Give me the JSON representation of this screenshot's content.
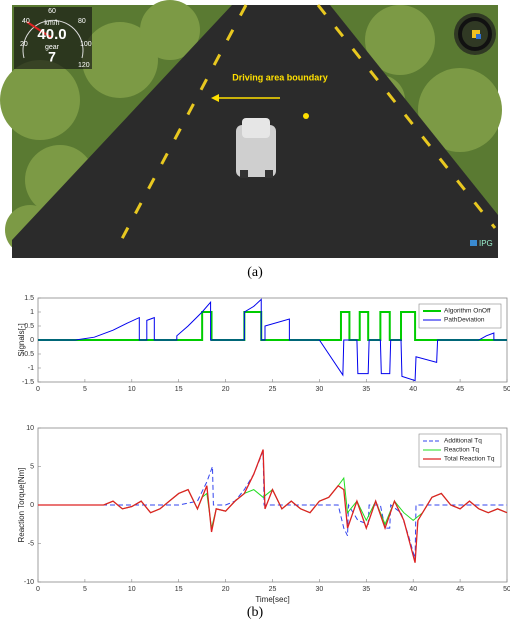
{
  "scene": {
    "gauge_ticks": [
      "20",
      "40",
      "60",
      "80",
      "100",
      "120"
    ],
    "speed_unit": "km/h",
    "speed": "40.0",
    "gear_label": "gear",
    "gear": "7",
    "annotation": "Driving area boundary",
    "logo": "IPG"
  },
  "captions": [
    "(a)",
    "(b)"
  ],
  "chart_data": [
    {
      "type": "line",
      "ylabel": "Signals[-]",
      "xlim": [
        0,
        50
      ],
      "xticks": [
        0,
        5,
        10,
        15,
        20,
        25,
        30,
        35,
        40,
        45,
        50
      ],
      "ylim": [
        -1.5,
        1.5
      ],
      "yticks": [
        -1.5,
        -1,
        -0.5,
        0,
        0.5,
        1,
        1.5
      ],
      "legend": "upper right",
      "series": [
        {
          "name": "Algorithm OnOff",
          "color": "#00cc00",
          "width": 2,
          "dashed": false,
          "x": [
            0,
            17.5,
            17.5,
            18.5,
            18.5,
            22,
            22,
            23.8,
            23.8,
            32.3,
            32.3,
            33.2,
            33.2,
            34.3,
            34.3,
            35.2,
            35.2,
            36.5,
            36.5,
            37.5,
            37.5,
            38.7,
            38.7,
            40.2,
            40.2,
            50
          ],
          "values": [
            0,
            0,
            1,
            1,
            0,
            0,
            1,
            1,
            0,
            0,
            1,
            1,
            0,
            0,
            1,
            1,
            0,
            0,
            1,
            1,
            0,
            0,
            1,
            1,
            0,
            0
          ]
        },
        {
          "name": "PathDeviation",
          "color": "#0000ee",
          "width": 1,
          "dashed": false,
          "x": [
            0,
            4,
            6,
            8,
            9.5,
            10.8,
            10.8,
            11.6,
            11.6,
            12.4,
            12.4,
            14.8,
            14.8,
            16,
            17.5,
            18.4,
            18.4,
            22,
            22,
            23,
            23.8,
            23.8,
            24.2,
            24.2,
            26.8,
            26.8,
            30,
            31,
            32.5,
            32.6,
            34,
            34.1,
            35.2,
            35.3,
            36.5,
            36.6,
            37.5,
            37.6,
            38.7,
            38.8,
            40.2,
            40.3,
            42.5,
            42.6,
            47,
            47.8,
            48.6,
            48.6,
            50
          ],
          "values": [
            0,
            0,
            0.1,
            0.35,
            0.6,
            0.8,
            0,
            0,
            0.7,
            0.8,
            0,
            0,
            0.15,
            0.5,
            1.0,
            1.35,
            0,
            0,
            1.0,
            1.2,
            1.45,
            0,
            0,
            0.5,
            0.75,
            0,
            0,
            -0.5,
            -1.25,
            0,
            0,
            -1.2,
            -1.2,
            0,
            0,
            -1.2,
            -1.2,
            0,
            0,
            -1.3,
            -1.45,
            -0.6,
            -0.8,
            0,
            0,
            0.15,
            0.25,
            0,
            0
          ]
        }
      ]
    },
    {
      "type": "line",
      "xlabel": "Time[sec]",
      "ylabel": "Reaction Torque[Nm]",
      "xlim": [
        0,
        50
      ],
      "xticks": [
        0,
        5,
        10,
        15,
        20,
        25,
        30,
        35,
        40,
        45,
        50
      ],
      "ylim": [
        -10,
        10
      ],
      "yticks": [
        -10,
        -5,
        0,
        5,
        10
      ],
      "legend": "upper right",
      "series": [
        {
          "name": "Additional Tq",
          "color": "#3344ee",
          "width": 1,
          "dashed": true,
          "x": [
            0,
            15,
            17,
            18,
            18.6,
            18.7,
            20,
            21,
            22,
            23,
            24,
            24.1,
            32,
            32.6,
            33,
            33.1,
            34.1,
            35.2,
            35.3,
            36.5,
            37,
            37.5,
            37.6,
            38.7,
            39.5,
            40.2,
            40.3,
            50
          ],
          "values": [
            0,
            0,
            0.5,
            3,
            5,
            0,
            0,
            0.5,
            2,
            4,
            7,
            0,
            0,
            -3,
            -4,
            0,
            -2,
            -2.5,
            0,
            0,
            -3,
            -3,
            0,
            -1,
            -4,
            -7,
            0,
            0
          ]
        },
        {
          "name": "Reaction Tq",
          "color": "#22dd22",
          "width": 1,
          "dashed": false,
          "x": [
            0,
            7,
            8,
            9,
            10,
            11,
            12,
            13,
            14,
            15,
            16,
            17,
            17.5,
            18,
            18.5,
            19,
            20,
            21,
            22,
            23,
            24,
            25,
            26,
            27,
            28,
            29,
            30,
            31,
            32,
            32.6,
            33,
            34,
            35,
            36,
            37,
            38,
            39,
            40,
            41,
            42,
            43,
            44,
            45,
            46,
            47,
            48,
            49,
            50
          ],
          "values": [
            0,
            0,
            0.5,
            -0.5,
            -0.2,
            0.5,
            -1,
            -0.5,
            0.5,
            1.5,
            2,
            -0.5,
            1,
            1.5,
            -3,
            -0.5,
            -0.8,
            0.5,
            1.5,
            2,
            1,
            2,
            -0.5,
            0.5,
            -0.5,
            -1,
            0.5,
            1,
            2.5,
            3.5,
            -1,
            0.5,
            -2,
            0.5,
            -2.5,
            0.5,
            -1,
            -2,
            -1,
            1,
            1.5,
            0,
            -0.5,
            0.5,
            -0.5,
            -1,
            -0.5,
            -1
          ]
        },
        {
          "name": "Total Reaction Tq",
          "color": "#dd2222",
          "width": 1.3,
          "dashed": false,
          "x": [
            0,
            7,
            8,
            9,
            10,
            11,
            12,
            13,
            14,
            15,
            16,
            17,
            17.5,
            18,
            18.5,
            19,
            20,
            21,
            22,
            23,
            24,
            24.2,
            25,
            26,
            27,
            28,
            29,
            30,
            31,
            32,
            32.6,
            33,
            34,
            35,
            36,
            37,
            38,
            39,
            40.2,
            40.5,
            41,
            42,
            43,
            44,
            45,
            46,
            47,
            48,
            49,
            50
          ],
          "values": [
            0,
            0,
            0.5,
            -0.5,
            -0.2,
            0.5,
            -1,
            -0.5,
            0.5,
            1.5,
            2,
            -0.5,
            1,
            2.5,
            -3.5,
            -0.5,
            -0.8,
            0.5,
            1.5,
            4,
            7.2,
            -0.5,
            2,
            -0.5,
            0.5,
            -0.5,
            -1,
            0.5,
            1,
            2.5,
            2,
            -3,
            0.5,
            -3,
            0.5,
            -3,
            0.5,
            -2,
            -7.5,
            -2,
            -1,
            1,
            1.5,
            0,
            -0.5,
            0.5,
            -0.5,
            -1,
            -0.5,
            -1
          ]
        }
      ]
    }
  ]
}
